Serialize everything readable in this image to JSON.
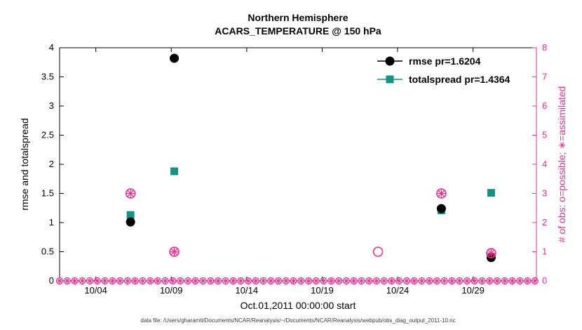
{
  "colors": {
    "pink": "#e8318f",
    "teal": "#0f9488",
    "black": "#000000"
  },
  "chart_data": {
    "type": "scatter",
    "title": "Northern Hemisphere",
    "subtitle": "ACARS_TEMPERATURE @ 150 hPa",
    "xlabel": "Oct.01,2011 00:00:00 start",
    "ylabel_left": "rmse and totalspread",
    "ylabel_right": "# of obs: o=possible; ∗=assimilated",
    "caption": "data file: /Users/gharamti/Documents/NCAR/Reanalysis/~/Documents/NCAR/Reanalysis/webpub/obs_diag_output_2011-10.nc",
    "grid": false,
    "xlim": [
      1.6,
      33.2
    ],
    "x_ticks": [
      {
        "day": 4,
        "label": "10/04"
      },
      {
        "day": 9,
        "label": "10/09"
      },
      {
        "day": 14,
        "label": "10/14"
      },
      {
        "day": 19,
        "label": "10/19"
      },
      {
        "day": 24,
        "label": "10/24"
      },
      {
        "day": 29,
        "label": "10/29"
      }
    ],
    "ylim_left": [
      0,
      4
    ],
    "yticks_left": [
      0,
      0.5,
      1,
      1.5,
      2,
      2.5,
      3,
      3.5,
      4
    ],
    "ylim_right": [
      0,
      8
    ],
    "yticks_right": [
      0,
      1,
      2,
      3,
      4,
      5,
      6,
      7,
      8
    ],
    "series": [
      {
        "name": "totalspread pr=1.4364",
        "axis": "left",
        "marker": "filled-square",
        "color": "teal",
        "points": [
          {
            "x": 6.3,
            "y": 1.13
          },
          {
            "x": 9.2,
            "y": 1.88
          },
          {
            "x": 26.9,
            "y": 1.21
          },
          {
            "x": 30.2,
            "y": 1.51
          }
        ]
      },
      {
        "name": "rmse pr=1.6204",
        "axis": "left",
        "marker": "filled-circle",
        "color": "black",
        "points": [
          {
            "x": 6.3,
            "y": 1.01
          },
          {
            "x": 9.2,
            "y": 3.82
          },
          {
            "x": 26.9,
            "y": 1.24
          },
          {
            "x": 30.2,
            "y": 0.4
          }
        ]
      },
      {
        "name": "obs_possible",
        "axis": "right",
        "marker": "open-circle",
        "color": "pink",
        "points": [
          {
            "x": 6.3,
            "y": 3
          },
          {
            "x": 9.2,
            "y": 1
          },
          {
            "x": 22.7,
            "y": 1
          },
          {
            "x": 26.9,
            "y": 3
          },
          {
            "x": 30.2,
            "y": 0.95
          }
        ]
      },
      {
        "name": "obs_assimilated",
        "axis": "right",
        "marker": "asterisk",
        "color": "pink",
        "points": [
          {
            "x": 6.3,
            "y": 3
          },
          {
            "x": 9.2,
            "y": 1
          },
          {
            "x": 26.9,
            "y": 3
          },
          {
            "x": 30.2,
            "y": 0.95
          }
        ]
      }
    ],
    "zero_row": {
      "start": 1.6,
      "end": 33.2,
      "step": 0.5,
      "value": 0,
      "markers": [
        "open-circle",
        "asterisk"
      ]
    },
    "legend": [
      {
        "label": "rmse pr=1.6204",
        "color": "black",
        "marker": "filled-circle"
      },
      {
        "label": "totalspread pr=1.4364",
        "color": "teal",
        "marker": "filled-square"
      }
    ]
  }
}
